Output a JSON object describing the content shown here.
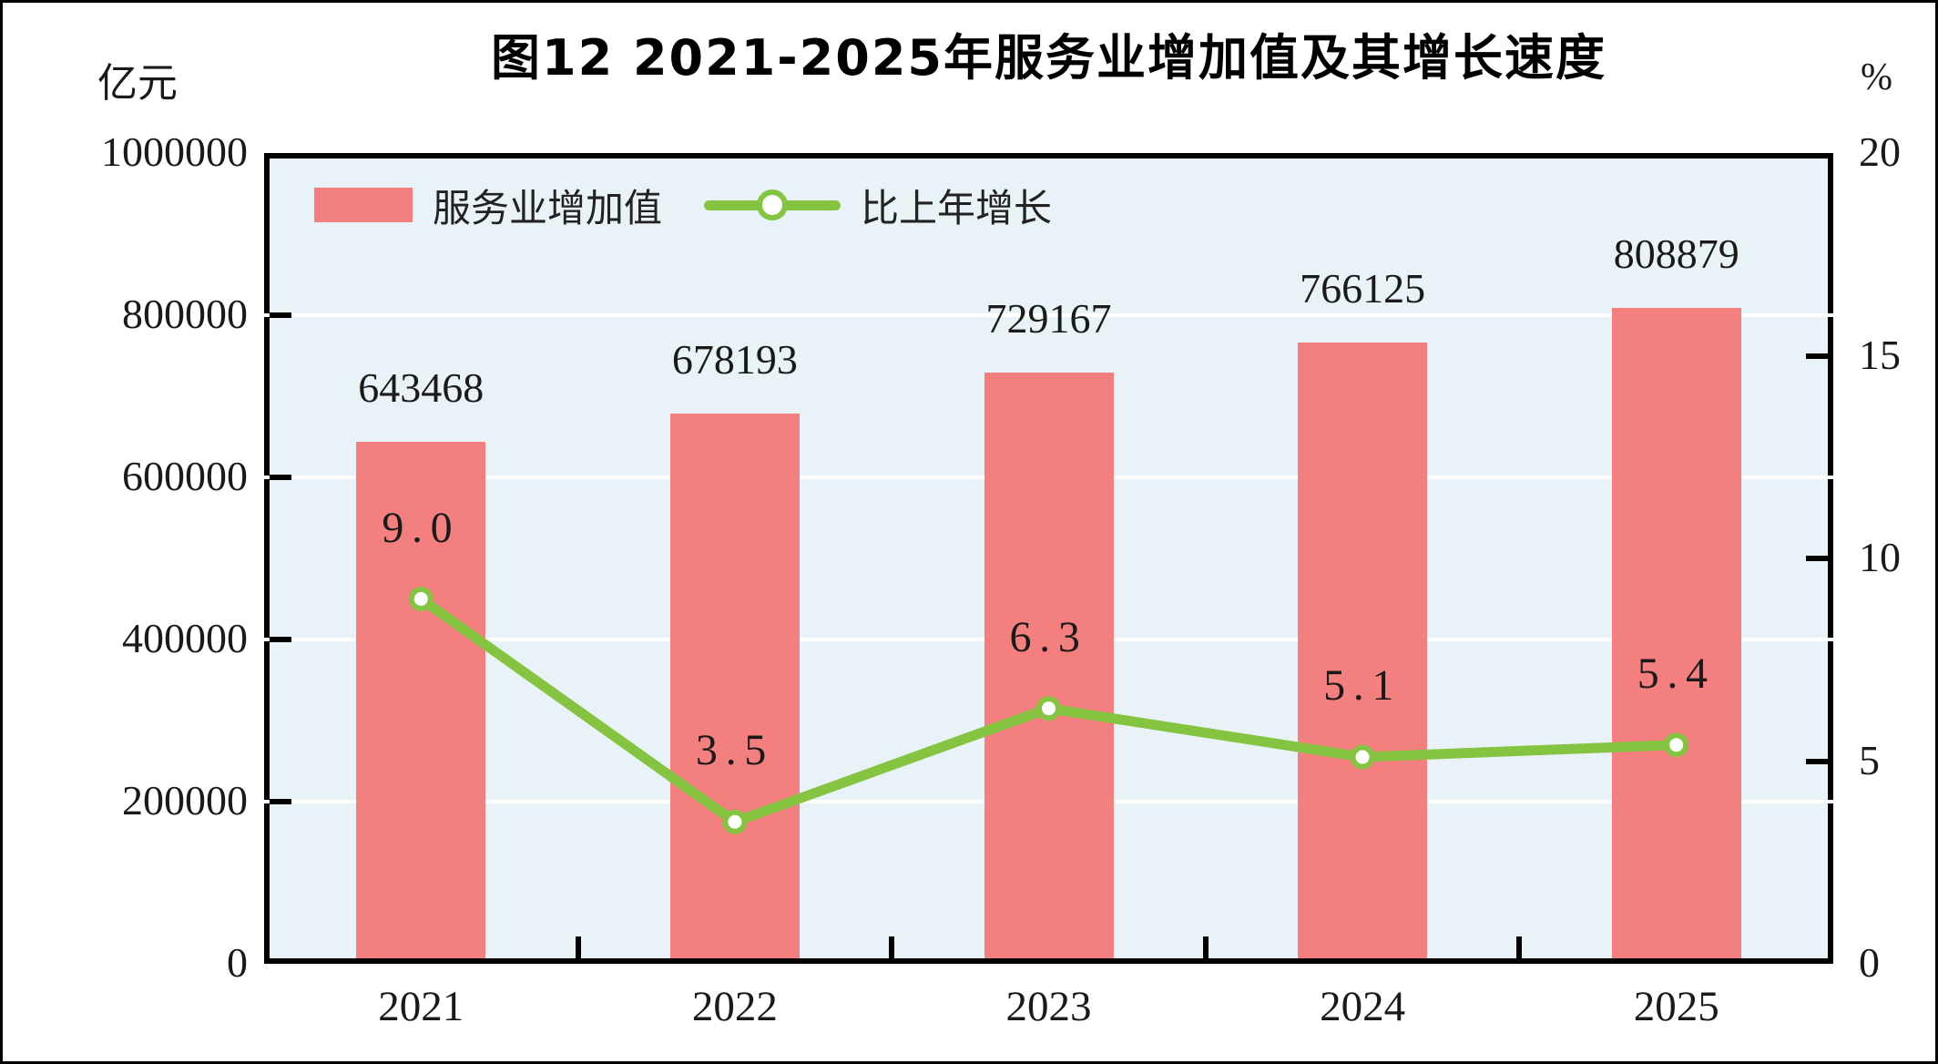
{
  "title": "图12  2021-2025年服务业增加值及其增长速度",
  "left_axis": {
    "unit": "亿元",
    "tick_labels": [
      "1000000",
      "800000",
      "600000",
      "400000",
      "200000",
      "0"
    ],
    "tick_values": [
      1000000,
      800000,
      600000,
      400000,
      200000,
      0
    ]
  },
  "right_axis": {
    "unit": "%",
    "tick_labels": [
      "20",
      "15",
      "10",
      "5",
      "0"
    ],
    "tick_values": [
      20,
      15,
      10,
      5,
      0
    ]
  },
  "legend": [
    {
      "label": "服务业增加值",
      "type": "bar"
    },
    {
      "label": "比上年增长",
      "type": "line"
    }
  ],
  "colors": {
    "bar": "#F47F7F",
    "line": "#85C440",
    "marker_fill": "#FFFFFF",
    "plot_background": "#E9F2F6",
    "gridline": "#FFFFFF",
    "axis": "#000000",
    "text": "#1A1A1A"
  },
  "chart_data": {
    "type": "bar",
    "subtype": "bar+line combo, dual axis",
    "title": "图12  2021-2025年服务业增加值及其增长速度",
    "categories": [
      "2021",
      "2022",
      "2023",
      "2024",
      "2025"
    ],
    "series": [
      {
        "name": "服务业增加值",
        "type": "bar",
        "axis": "left",
        "unit": "亿元",
        "values": [
          643468,
          678193,
          729167,
          766125,
          808879
        ],
        "value_labels": [
          "643468",
          "678193",
          "729167",
          "766125",
          "808879"
        ]
      },
      {
        "name": "比上年增长",
        "type": "line",
        "axis": "right",
        "unit": "%",
        "values": [
          9.0,
          3.5,
          6.3,
          5.1,
          5.4
        ],
        "value_labels": [
          "9.0",
          "3.5",
          "6.3",
          "5.1",
          "5.4"
        ]
      }
    ],
    "left_ylim": [
      0,
      1000000
    ],
    "right_ylim": [
      0,
      20
    ],
    "grid": true,
    "gridline_values_left_axis": [
      800000,
      600000,
      400000,
      200000
    ],
    "legend_position": "top-left-inside"
  }
}
